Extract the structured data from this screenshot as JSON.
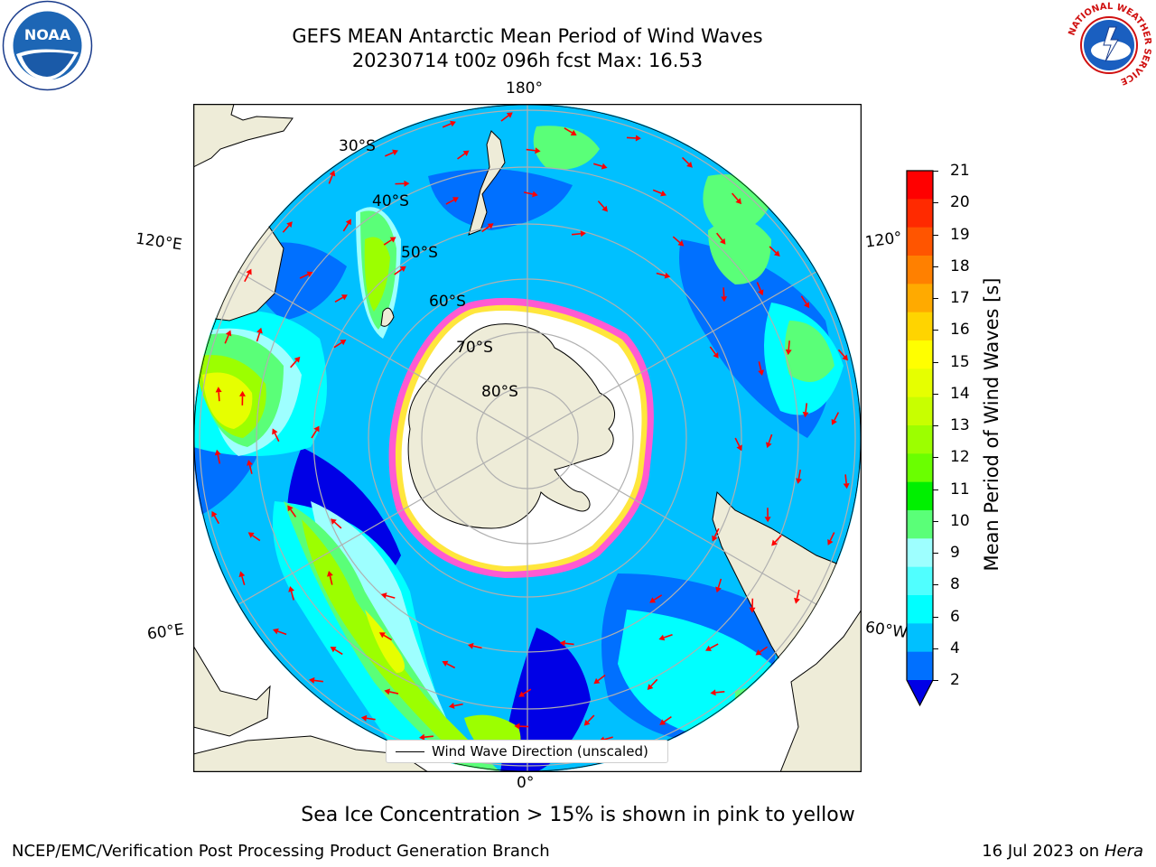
{
  "title_line1": "GEFS MEAN Antarctic Mean Period of Wind Waves",
  "title_line2": "20230714 t00z 096h fcst   Max: 16.53",
  "map": {
    "lon_labels": {
      "top": "180°",
      "bottom": "0°",
      "left_upper": "120°E",
      "left_lower": "60°E",
      "right_upper": "120°",
      "right_lower": "60°W"
    },
    "lat_labels": [
      "30°S",
      "40°S",
      "50°S",
      "60°S",
      "70°S",
      "80°S"
    ],
    "legend_entry": "Wind Wave Direction (unscaled)",
    "colors": {
      "land": "#eeecd8",
      "ice_pink": "#ff5ad2",
      "ice_yellow": "#ffe63c",
      "arrow": "#ff0000",
      "grid": "#b0b0b0"
    }
  },
  "colorbar": {
    "label": "Mean Period of Wind Waves [s]",
    "ticks": [
      "21",
      "20",
      "19",
      "18",
      "17",
      "16",
      "15",
      "14",
      "13",
      "12",
      "11",
      "10",
      "9",
      "8",
      "6",
      "4",
      "2"
    ],
    "colors": [
      "#ff0000",
      "#ff2a00",
      "#ff5500",
      "#ff8000",
      "#ffaa00",
      "#ffd400",
      "#ffff00",
      "#e6ff00",
      "#c8ff00",
      "#9cff00",
      "#6aff00",
      "#00f000",
      "#5aff78",
      "#9effff",
      "#50ffff",
      "#00ffff",
      "#00c0ff",
      "#0070ff",
      "#0000e6"
    ]
  },
  "caption": "Sea Ice Concentration > 15% is shown in pink to yellow",
  "footer": {
    "left": "NCEP/EMC/Verification Post Processing Product Generation Branch",
    "date": "16 Jul 2023 on",
    "machine": "Hera"
  },
  "logos": {
    "noaa_text": "NOAA",
    "nws_ring_text": "NATIONAL WEATHER SERVICE"
  }
}
